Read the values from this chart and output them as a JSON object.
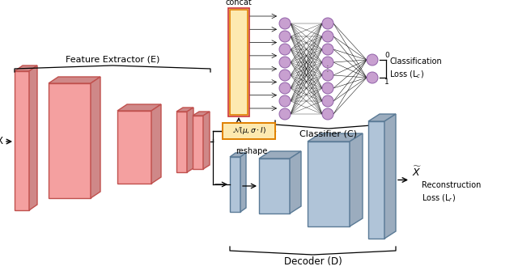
{
  "feature_extractor_label": "Feature Extractor (E)",
  "classifier_label": "Classifier (C)",
  "decoder_label": "Decoder (D)",
  "concat_label": "concat",
  "reshape_label": "reshape",
  "normal_label": "$\\mathcal{N}(\\mu, \\sigma \\cdot I)$",
  "enc_face": "#f4a0a0",
  "enc_edge": "#c0504d",
  "dec_face_light": "#b0c4d8",
  "dec_face_dark": "#8aabbf",
  "dec_edge": "#5a7a96",
  "concat_face": "#fde9b0",
  "concat_edge": "#e08000",
  "concat_outer_edge": "#cc3333",
  "neuron_face": "#c8a0d0",
  "neuron_edge": "#9060a8",
  "bg_color": "white"
}
